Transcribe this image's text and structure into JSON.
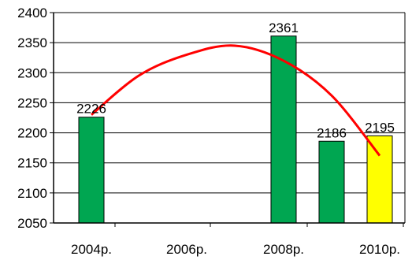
{
  "chart_data": {
    "type": "bar",
    "title": "",
    "xlabel": "",
    "ylabel": "",
    "ylim": [
      2050,
      2400
    ],
    "y_ticks": [
      "2050",
      "2100",
      "2150",
      "2200",
      "2250",
      "2300",
      "2350",
      "2400"
    ],
    "grid": "horizontal",
    "x_ticks": [
      "2004р.",
      "2006р.",
      "2008р.",
      "2010р."
    ],
    "bars": [
      {
        "year": 2004,
        "value": 2226,
        "label": "2226",
        "color": "#00a651"
      },
      {
        "year": 2008,
        "value": 2361,
        "label": "2361",
        "color": "#00a651"
      },
      {
        "year": 2009,
        "value": 2186,
        "label": "2186",
        "color": "#00a651"
      },
      {
        "year": 2010,
        "value": 2195,
        "label": "2195",
        "color": "#ffff00"
      }
    ],
    "trendline": {
      "type": "polynomial",
      "color": "#ff0000",
      "points": [
        {
          "year": 2004,
          "value": 2230
        },
        {
          "year": 2005,
          "value": 2295
        },
        {
          "year": 2006,
          "value": 2330
        },
        {
          "year": 2007,
          "value": 2345
        },
        {
          "year": 2008,
          "value": 2320
        },
        {
          "year": 2009,
          "value": 2262
        },
        {
          "year": 2010,
          "value": 2162
        }
      ]
    }
  }
}
